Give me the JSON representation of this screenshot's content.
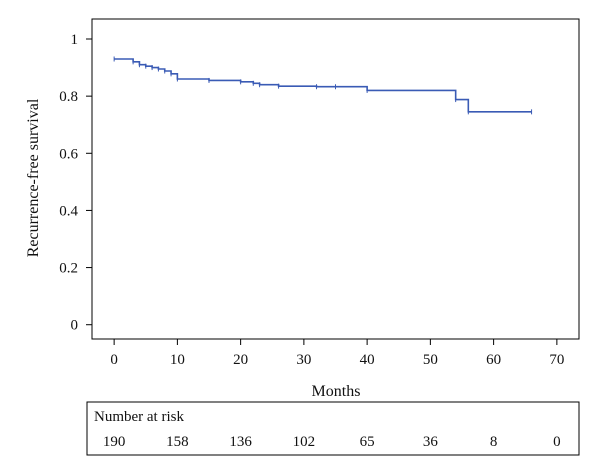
{
  "chart_data": {
    "type": "line",
    "title": "",
    "xlabel": "Months",
    "ylabel": "Recurrence-free survival",
    "xlim": [
      -3.5,
      73.5
    ],
    "ylim": [
      -0.05,
      1.07
    ],
    "x_ticks": [
      0,
      10,
      20,
      30,
      40,
      50,
      60,
      70
    ],
    "y_ticks": [
      0,
      0.2,
      0.4,
      0.6,
      0.8,
      1
    ],
    "x_tick_labels": [
      "0",
      "10",
      "20",
      "30",
      "40",
      "50",
      "60",
      "70"
    ],
    "y_tick_labels": [
      "0",
      "0.2",
      "0.4",
      "0.6",
      "0.8",
      "1"
    ],
    "grid": false,
    "legend": "none",
    "series": [
      {
        "color": "#3a5bb5",
        "step": true,
        "x": [
          0,
          3,
          4,
          5,
          6,
          7,
          8,
          9,
          10,
          15,
          20,
          22,
          23,
          26,
          32,
          35,
          40,
          54,
          56,
          66
        ],
        "values": [
          0.93,
          0.92,
          0.91,
          0.905,
          0.9,
          0.895,
          0.888,
          0.878,
          0.86,
          0.855,
          0.85,
          0.845,
          0.84,
          0.835,
          0.833,
          0.833,
          0.82,
          0.788,
          0.745,
          0.745
        ]
      }
    ],
    "risk_table": {
      "title": "Number at risk",
      "times": [
        0,
        10,
        20,
        30,
        40,
        50,
        60,
        70
      ],
      "counts": [
        "190",
        "158",
        "136",
        "102",
        "65",
        "36",
        "8",
        "0"
      ]
    }
  }
}
